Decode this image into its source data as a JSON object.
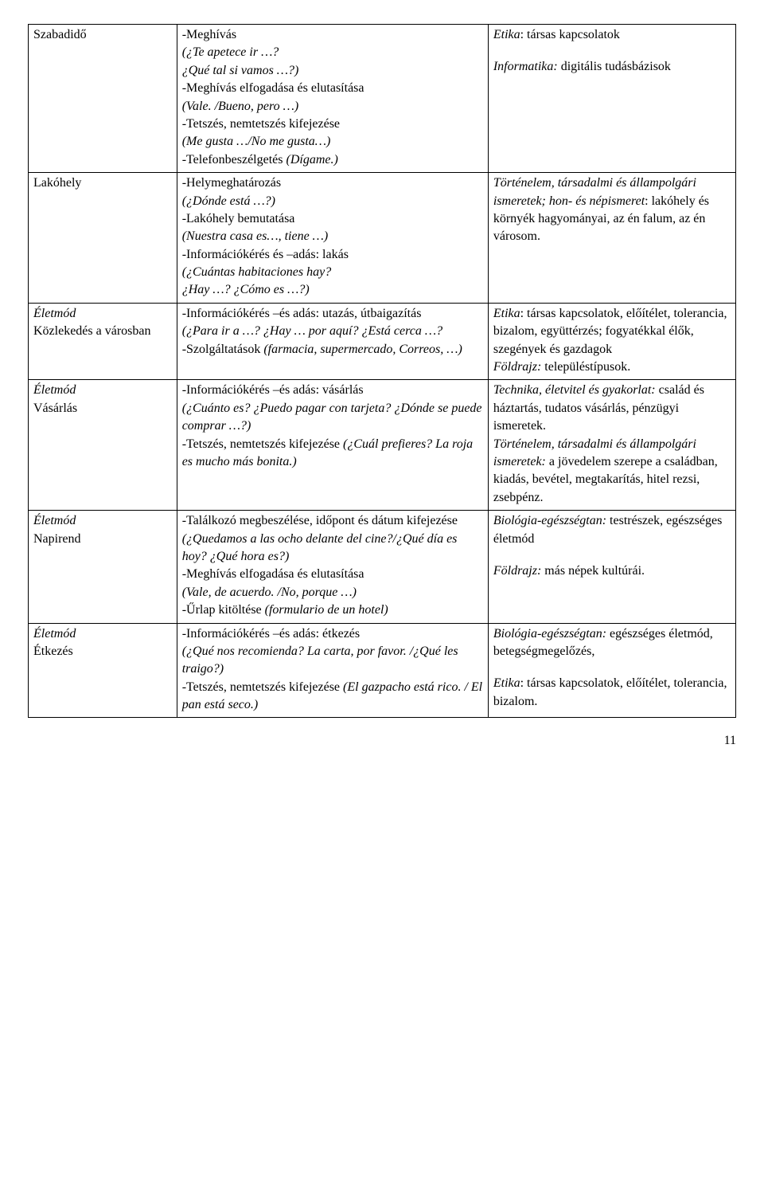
{
  "table": {
    "border_color": "#000000",
    "background_color": "#ffffff",
    "text_color": "#000000",
    "font_size": 16,
    "columns": {
      "left_width": "21%",
      "middle_width": "44%",
      "right_width": "35%"
    },
    "rows": [
      {
        "left": [
          {
            "text": "Szabadidő",
            "style": "plain"
          }
        ],
        "middle": [
          {
            "text": "-Meghívás",
            "style": "plain"
          },
          {
            "text": "(¿Te apetece ir …?",
            "style": "italic"
          },
          {
            "text": "¿Qué tal si vamos …?)",
            "style": "italic"
          },
          {
            "text": "-Meghívás elfogadása és elutasítása",
            "style": "plain"
          },
          {
            "text": "(Vale. /Bueno, pero …)",
            "style": "italic"
          },
          {
            "text": "-Tetszés, nemtetszés kifejezése",
            "style": "plain"
          },
          {
            "text": "(Me gusta …/No me gusta…)",
            "style": "italic"
          },
          {
            "text": "-Telefonbeszélgetés ",
            "style": "plain",
            "inline_next": true
          },
          {
            "text": "(Dígame.)",
            "style": "italic"
          }
        ],
        "right": [
          {
            "text": "Etika",
            "style": "italic",
            "inline_next": true
          },
          {
            "text": ": társas kapcsolatok",
            "style": "plain"
          },
          {
            "text": "",
            "style": "spacer"
          },
          {
            "text": "Informatika:",
            "style": "italic",
            "inline_next": true
          },
          {
            "text": " digitális tudásbázisok",
            "style": "plain"
          }
        ]
      },
      {
        "left": [
          {
            "text": "Lakóhely",
            "style": "plain"
          }
        ],
        "middle": [
          {
            "text": "-Helymeghatározás",
            "style": "plain"
          },
          {
            "text": "(¿Dónde está …?)",
            "style": "italic"
          },
          {
            "text": "-Lakóhely bemutatása",
            "style": "plain"
          },
          {
            "text": "(Nuestra casa es…, tiene …)",
            "style": "italic"
          },
          {
            "text": "-Információkérés és –adás: lakás",
            "style": "plain"
          },
          {
            "text": "(¿Cuántas habitaciones hay?",
            "style": "italic"
          },
          {
            "text": "¿Hay …? ¿Cómo es …?)",
            "style": "italic"
          }
        ],
        "right": [
          {
            "text": "Történelem, társadalmi és állampolgári ismeretek; hon- és népismeret",
            "style": "italic",
            "inline_next": true
          },
          {
            "text": ": lakóhely és környék hagyományai, az én falum, az én városom.",
            "style": "plain"
          }
        ]
      },
      {
        "left": [
          {
            "text": "Életmód",
            "style": "italic"
          },
          {
            "text": "Közlekedés a városban",
            "style": "plain"
          }
        ],
        "middle": [
          {
            "text": "-Információkérés –és adás: utazás, útbaigazítás",
            "style": "plain"
          },
          {
            "text": "(¿Para ir a …? ¿Hay … por aquí? ¿Está cerca …?",
            "style": "italic"
          },
          {
            "text": "-Szolgáltatások ",
            "style": "plain",
            "inline_next": true
          },
          {
            "text": "(farmacia, supermercado, Correos, …)",
            "style": "italic"
          }
        ],
        "right": [
          {
            "text": "Etika",
            "style": "italic",
            "inline_next": true
          },
          {
            "text": ": társas kapcsolatok, előítélet, tolerancia, bizalom, együttérzés; fogyatékkal élők, szegények és gazdagok",
            "style": "plain"
          },
          {
            "text": "Földrajz:",
            "style": "italic",
            "inline_next": true
          },
          {
            "text": " településtípusok.",
            "style": "plain"
          }
        ]
      },
      {
        "left": [
          {
            "text": "Életmód",
            "style": "italic"
          },
          {
            "text": "Vásárlás",
            "style": "plain"
          }
        ],
        "middle": [
          {
            "text": "-Információkérés –és adás: vásárlás",
            "style": "plain"
          },
          {
            "text": "(¿Cuánto es? ¿Puedo pagar con tarjeta? ¿Dónde se puede comprar …?)",
            "style": "italic"
          },
          {
            "text": "-Tetszés, nemtetszés kifejezése ",
            "style": "plain",
            "inline_next": true
          },
          {
            "text": "(¿Cuál prefieres? La roja es mucho más bonita.)",
            "style": "italic"
          }
        ],
        "right": [
          {
            "text": "Technika, életvitel és gyakorlat:",
            "style": "italic",
            "inline_next": true
          },
          {
            "text": " család és háztartás, tudatos vásárlás, pénzügyi ismeretek.",
            "style": "plain"
          },
          {
            "text": "Történelem, társadalmi és állampolgári ismeretek:",
            "style": "italic",
            "inline_next": true
          },
          {
            "text": " a jövedelem szerepe a családban, kiadás, bevétel, megtakarítás, hitel rezsi, zsebpénz.",
            "style": "plain"
          }
        ]
      },
      {
        "left": [
          {
            "text": "Életmód",
            "style": "italic"
          },
          {
            "text": "Napirend",
            "style": "plain"
          }
        ],
        "middle": [
          {
            "text": "-Találkozó megbeszélése, időpont és dátum kifejezése",
            "style": "plain"
          },
          {
            "text": "(¿Quedamos a las ocho delante del cine?/¿Qué día es hoy? ¿Qué hora es?)",
            "style": "italic"
          },
          {
            "text": "-Meghívás elfogadása és elutasítása",
            "style": "plain"
          },
          {
            "text": "(Vale, de acuerdo. /No, porque …)",
            "style": "italic"
          },
          {
            "text": "-Űrlap kitöltése ",
            "style": "plain",
            "inline_next": true
          },
          {
            "text": "(formulario de un hotel)",
            "style": "italic"
          }
        ],
        "right": [
          {
            "text": "Biológia-egészségtan:",
            "style": "italic",
            "inline_next": true
          },
          {
            "text": " testrészek, egészséges életmód",
            "style": "plain"
          },
          {
            "text": "",
            "style": "spacer"
          },
          {
            "text": "Földrajz:",
            "style": "italic",
            "inline_next": true
          },
          {
            "text": " más népek kultúrái.",
            "style": "plain"
          }
        ]
      },
      {
        "left": [
          {
            "text": "Életmód",
            "style": "italic"
          },
          {
            "text": "Étkezés",
            "style": "plain"
          }
        ],
        "middle": [
          {
            "text": "-Információkérés –és adás: étkezés",
            "style": "plain"
          },
          {
            "text": "(¿Qué nos recomienda? La carta, por favor. /¿Qué les traigo?)",
            "style": "italic"
          },
          {
            "text": "-Tetszés, nemtetszés kifejezése ",
            "style": "plain",
            "inline_next": true
          },
          {
            "text": "(El gazpacho está rico. / El pan está seco.)",
            "style": "italic"
          }
        ],
        "right": [
          {
            "text": "Biológia-egészségtan:",
            "style": "italic",
            "inline_next": true
          },
          {
            "text": " egészséges életmód, betegségmegelőzés,",
            "style": "plain"
          },
          {
            "text": "",
            "style": "spacer"
          },
          {
            "text": "Etika",
            "style": "italic",
            "inline_next": true
          },
          {
            "text": ": társas kapcsolatok, előítélet, tolerancia, bizalom.",
            "style": "plain"
          }
        ]
      }
    ]
  },
  "page_number": "11"
}
